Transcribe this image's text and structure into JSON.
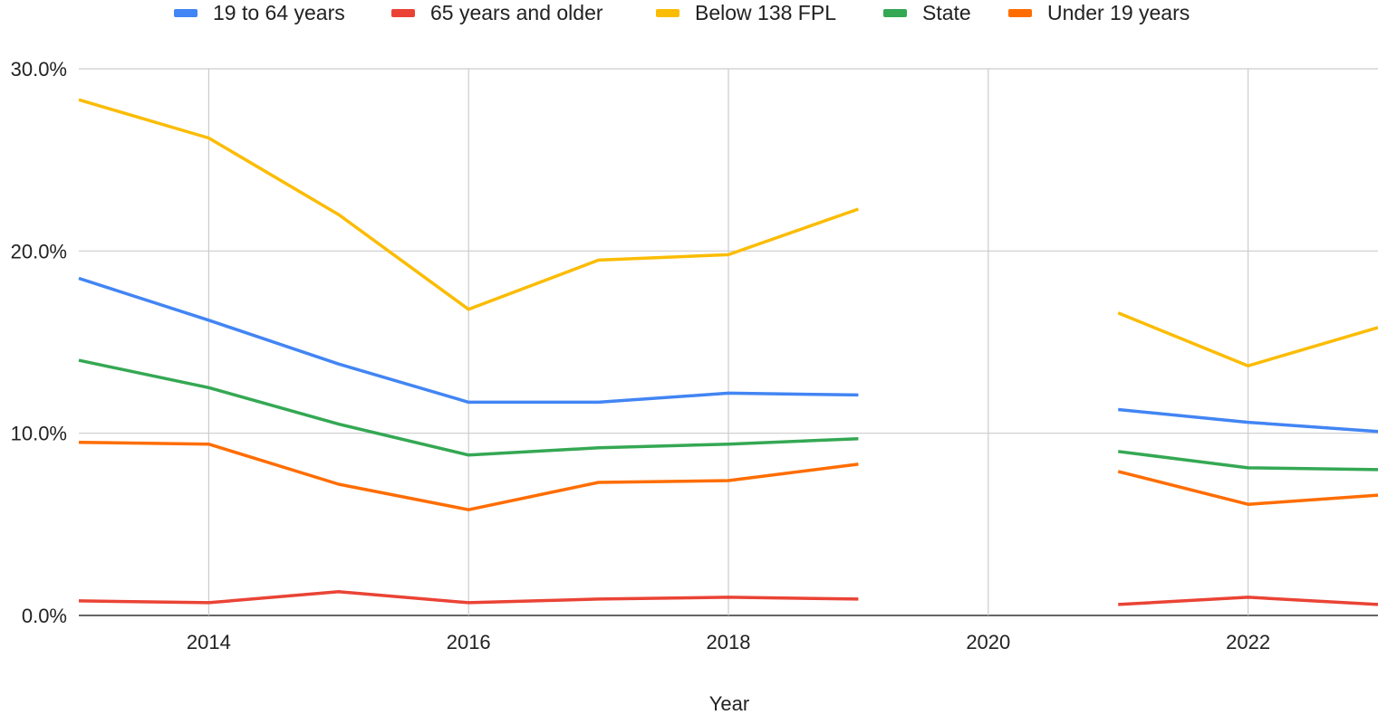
{
  "chart_data": {
    "type": "line",
    "title": "",
    "xlabel": "Year",
    "ylabel": "",
    "xlim": [
      2013,
      2023
    ],
    "ylim": [
      0,
      30
    ],
    "x_ticks": [
      2014,
      2016,
      2018,
      2020,
      2022
    ],
    "y_ticks": [
      0,
      10,
      20,
      30
    ],
    "y_tick_labels": [
      "0.0%",
      "10.0%",
      "20.0%",
      "30.0%"
    ],
    "grid": true,
    "legend_position": "top",
    "x": [
      2013,
      2014,
      2015,
      2016,
      2017,
      2018,
      2019,
      2020,
      2021,
      2022,
      2023
    ],
    "series": [
      {
        "name": "19 to 64 years",
        "color": "#4285f4",
        "values": [
          18.5,
          16.2,
          13.8,
          11.7,
          11.7,
          12.2,
          12.1,
          null,
          11.3,
          10.6,
          10.1
        ]
      },
      {
        "name": "65 years and older",
        "color": "#ea4335",
        "values": [
          0.8,
          0.7,
          1.3,
          0.7,
          0.9,
          1.0,
          0.9,
          null,
          0.6,
          1.0,
          0.6
        ]
      },
      {
        "name": "Below 138 FPL",
        "color": "#fbbc04",
        "values": [
          28.3,
          26.2,
          22.0,
          16.8,
          19.5,
          19.8,
          22.3,
          null,
          16.6,
          13.7,
          15.8
        ]
      },
      {
        "name": "State",
        "color": "#34a853",
        "values": [
          14.0,
          12.5,
          10.5,
          8.8,
          9.2,
          9.4,
          9.7,
          null,
          9.0,
          8.1,
          8.0
        ]
      },
      {
        "name": "Under 19 years",
        "color": "#ff6d01",
        "values": [
          9.5,
          9.4,
          7.2,
          5.8,
          7.3,
          7.4,
          8.3,
          null,
          7.9,
          6.1,
          6.6
        ]
      }
    ]
  }
}
